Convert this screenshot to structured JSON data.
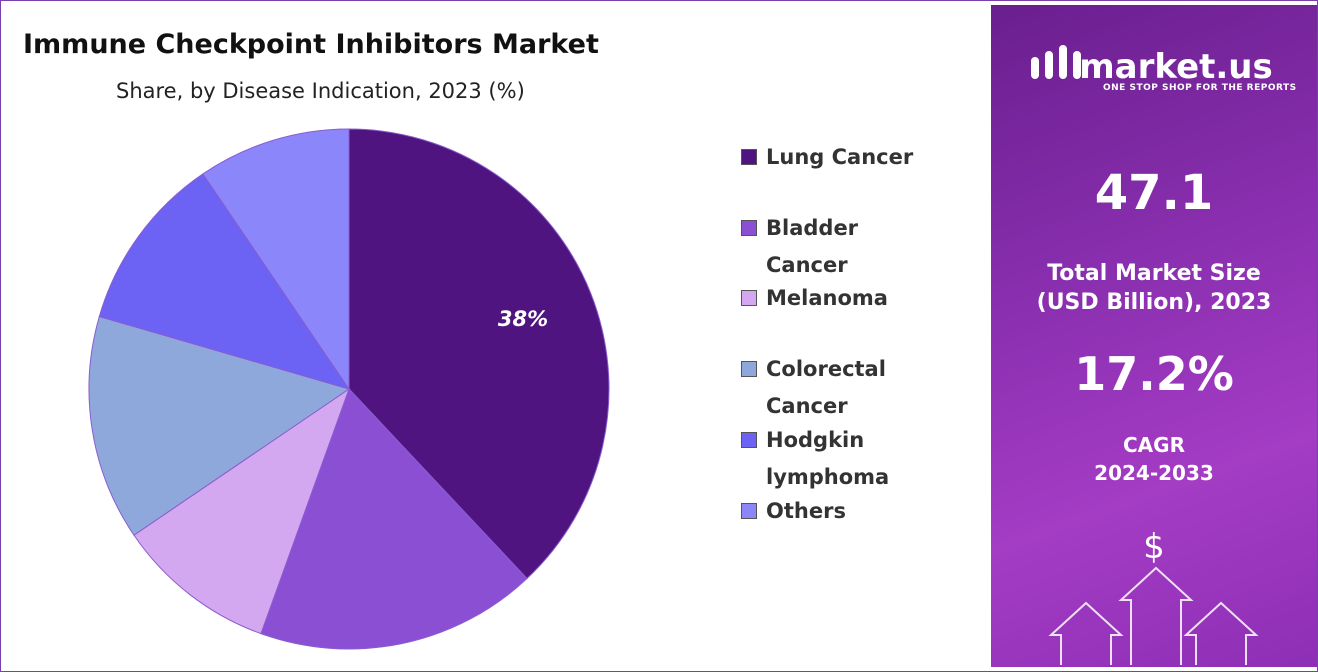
{
  "chart_data": {
    "type": "pie",
    "title": "Immune Checkpoint Inhibitors Market",
    "subtitle": "Share, by Disease Indication, 2023 (%)",
    "categories": [
      "Lung Cancer",
      "Bladder Cancer",
      "Melanoma",
      "Colorectal Cancer",
      "Hodgkin lymphoma",
      "Others"
    ],
    "values": [
      38,
      17.5,
      10,
      14,
      11,
      9.5
    ],
    "value_labels": [
      "38%",
      null,
      null,
      null,
      null,
      null
    ],
    "colors": [
      "#4f1480",
      "#8b4fd3",
      "#d4a8f0",
      "#8fa8dc",
      "#6c63f5",
      "#8b87fb"
    ]
  },
  "side_panel": {
    "logo": "market.us",
    "tagline": "ONE STOP SHOP FOR THE REPORTS",
    "market_size": "47.1",
    "market_size_label": [
      "Total Market Size",
      "(USD Billion), 2023"
    ],
    "cagr": "17.2%",
    "cagr_label": [
      "CAGR",
      "2024-2033"
    ],
    "icon": "$"
  }
}
